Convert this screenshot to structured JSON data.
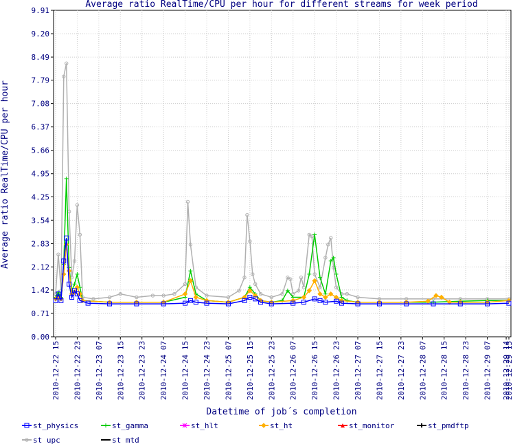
{
  "chart_data": {
    "type": "line",
    "title": "Average ratio RealTime/CPU per hour for different streams for week period",
    "xlabel": "Datetime of job´s completion",
    "ylabel": "Average ratio RealTime/CPU per hour",
    "ylim": [
      0,
      9.91
    ],
    "yticks": [
      "0.00",
      "0.71",
      "1.42",
      "2.12",
      "2.83",
      "3.54",
      "4.25",
      "4.95",
      "5.66",
      "6.37",
      "7.08",
      "7.79",
      "8.49",
      "9.20",
      "9.91"
    ],
    "xlim_hours": [
      0,
      168
    ],
    "xticks": [
      {
        "h": 0,
        "label": "2010-12-22 15"
      },
      {
        "h": 8,
        "label": "2010-12-22 23"
      },
      {
        "h": 16,
        "label": "2010-12-23 07"
      },
      {
        "h": 24,
        "label": "2010-12-23 15"
      },
      {
        "h": 32,
        "label": "2010-12-23 23"
      },
      {
        "h": 40,
        "label": "2010-12-24 07"
      },
      {
        "h": 48,
        "label": "2010-12-24 15"
      },
      {
        "h": 56,
        "label": "2010-12-24 23"
      },
      {
        "h": 64,
        "label": "2010-12-25 07"
      },
      {
        "h": 72,
        "label": "2010-12-25 15"
      },
      {
        "h": 80,
        "label": "2010-12-25 23"
      },
      {
        "h": 88,
        "label": "2010-12-26 07"
      },
      {
        "h": 96,
        "label": "2010-12-26 15"
      },
      {
        "h": 104,
        "label": "2010-12-26 23"
      },
      {
        "h": 112,
        "label": "2010-12-27 07"
      },
      {
        "h": 120,
        "label": "2010-12-27 15"
      },
      {
        "h": 128,
        "label": "2010-12-27 23"
      },
      {
        "h": 136,
        "label": "2010-12-28 07"
      },
      {
        "h": 144,
        "label": "2010-12-28 15"
      },
      {
        "h": 152,
        "label": "2010-12-28 23"
      },
      {
        "h": 160,
        "label": "2010-12-29 07"
      },
      {
        "h": 167,
        "label": "2010-12-29 14"
      },
      {
        "h": 168,
        "label": "2010-12-29 15"
      }
    ],
    "series": [
      {
        "name": "st_physics",
        "color": "#0000ff",
        "marker": "square",
        "points": [
          [
            0,
            1.1
          ],
          [
            1,
            1.3
          ],
          [
            2,
            1.1
          ],
          [
            3,
            2.3
          ],
          [
            4,
            3.0
          ],
          [
            5,
            1.6
          ],
          [
            6,
            1.2
          ],
          [
            7,
            1.4
          ],
          [
            8,
            1.3
          ],
          [
            9,
            1.1
          ],
          [
            12,
            1.02
          ],
          [
            20,
            1.0
          ],
          [
            30,
            1.0
          ],
          [
            40,
            1.0
          ],
          [
            48,
            1.02
          ],
          [
            50,
            1.1
          ],
          [
            52,
            1.05
          ],
          [
            56,
            1.02
          ],
          [
            64,
            1.0
          ],
          [
            70,
            1.1
          ],
          [
            72,
            1.2
          ],
          [
            74,
            1.15
          ],
          [
            76,
            1.05
          ],
          [
            80,
            1.0
          ],
          [
            88,
            1.02
          ],
          [
            92,
            1.05
          ],
          [
            96,
            1.15
          ],
          [
            98,
            1.1
          ],
          [
            100,
            1.05
          ],
          [
            104,
            1.08
          ],
          [
            106,
            1.02
          ],
          [
            112,
            1.0
          ],
          [
            120,
            1.0
          ],
          [
            130,
            1.0
          ],
          [
            140,
            1.0
          ],
          [
            150,
            1.0
          ],
          [
            160,
            1.0
          ],
          [
            168,
            1.02
          ]
        ]
      },
      {
        "name": "st_gamma",
        "color": "#00cc00",
        "marker": "plus",
        "points": [
          [
            0,
            1.2
          ],
          [
            1,
            1.35
          ],
          [
            2,
            1.2
          ],
          [
            3,
            2.2
          ],
          [
            4,
            4.8
          ],
          [
            5,
            2.1
          ],
          [
            6,
            1.4
          ],
          [
            7,
            1.6
          ],
          [
            8,
            1.9
          ],
          [
            9,
            1.5
          ],
          [
            10,
            1.1
          ],
          [
            20,
            1.05
          ],
          [
            30,
            1.05
          ],
          [
            40,
            1.05
          ],
          [
            48,
            1.2
          ],
          [
            50,
            2.0
          ],
          [
            52,
            1.3
          ],
          [
            56,
            1.1
          ],
          [
            64,
            1.05
          ],
          [
            70,
            1.2
          ],
          [
            72,
            1.5
          ],
          [
            74,
            1.3
          ],
          [
            76,
            1.1
          ],
          [
            80,
            1.05
          ],
          [
            84,
            1.1
          ],
          [
            86,
            1.4
          ],
          [
            88,
            1.2
          ],
          [
            92,
            1.2
          ],
          [
            94,
            1.9
          ],
          [
            96,
            3.1
          ],
          [
            98,
            1.8
          ],
          [
            100,
            1.3
          ],
          [
            102,
            2.3
          ],
          [
            103,
            2.4
          ],
          [
            104,
            1.9
          ],
          [
            106,
            1.2
          ],
          [
            108,
            1.1
          ],
          [
            112,
            1.05
          ],
          [
            120,
            1.05
          ],
          [
            130,
            1.05
          ],
          [
            140,
            1.05
          ],
          [
            150,
            1.08
          ],
          [
            160,
            1.1
          ],
          [
            168,
            1.1
          ]
        ]
      },
      {
        "name": "st_hlt",
        "color": "#ff00ff",
        "marker": "star",
        "points": []
      },
      {
        "name": "st_ht",
        "color": "#ffb000",
        "marker": "diamond",
        "points": [
          [
            0,
            1.15
          ],
          [
            1,
            1.2
          ],
          [
            2,
            1.15
          ],
          [
            3,
            1.9
          ],
          [
            4,
            2.8
          ],
          [
            5,
            2.0
          ],
          [
            6,
            1.3
          ],
          [
            7,
            1.35
          ],
          [
            8,
            1.5
          ],
          [
            9,
            1.3
          ],
          [
            10,
            1.1
          ],
          [
            20,
            1.05
          ],
          [
            30,
            1.05
          ],
          [
            40,
            1.05
          ],
          [
            48,
            1.3
          ],
          [
            50,
            1.7
          ],
          [
            52,
            1.2
          ],
          [
            56,
            1.1
          ],
          [
            64,
            1.05
          ],
          [
            70,
            1.2
          ],
          [
            72,
            1.4
          ],
          [
            74,
            1.25
          ],
          [
            76,
            1.1
          ],
          [
            80,
            1.05
          ],
          [
            88,
            1.1
          ],
          [
            92,
            1.2
          ],
          [
            94,
            1.4
          ],
          [
            96,
            1.7
          ],
          [
            98,
            1.3
          ],
          [
            100,
            1.2
          ],
          [
            102,
            1.3
          ],
          [
            104,
            1.2
          ],
          [
            106,
            1.1
          ],
          [
            112,
            1.05
          ],
          [
            120,
            1.05
          ],
          [
            130,
            1.05
          ],
          [
            138,
            1.08
          ],
          [
            141,
            1.25
          ],
          [
            143,
            1.2
          ],
          [
            146,
            1.05
          ],
          [
            150,
            1.05
          ],
          [
            160,
            1.05
          ],
          [
            168,
            1.1
          ]
        ]
      },
      {
        "name": "st_monitor",
        "color": "#ff0000",
        "marker": "triangle",
        "points": []
      },
      {
        "name": "st_pmdftp",
        "color": "#000000",
        "marker": "cross",
        "points": []
      },
      {
        "name": "st_upc",
        "color": "#b0b0b0",
        "marker": "circle",
        "points": [
          [
            0,
            1.3
          ],
          [
            1,
            2.5
          ],
          [
            2,
            1.4
          ],
          [
            3,
            7.9
          ],
          [
            4,
            8.3
          ],
          [
            5,
            3.8
          ],
          [
            6,
            1.8
          ],
          [
            7,
            2.3
          ],
          [
            8,
            4.0
          ],
          [
            9,
            3.1
          ],
          [
            10,
            1.2
          ],
          [
            14,
            1.15
          ],
          [
            20,
            1.2
          ],
          [
            24,
            1.3
          ],
          [
            30,
            1.2
          ],
          [
            36,
            1.25
          ],
          [
            40,
            1.25
          ],
          [
            44,
            1.3
          ],
          [
            48,
            1.6
          ],
          [
            49,
            4.1
          ],
          [
            50,
            2.8
          ],
          [
            52,
            1.5
          ],
          [
            56,
            1.25
          ],
          [
            64,
            1.2
          ],
          [
            68,
            1.4
          ],
          [
            70,
            1.8
          ],
          [
            71,
            3.7
          ],
          [
            72,
            2.9
          ],
          [
            73,
            1.9
          ],
          [
            74,
            1.6
          ],
          [
            76,
            1.3
          ],
          [
            80,
            1.2
          ],
          [
            84,
            1.3
          ],
          [
            86,
            1.8
          ],
          [
            87,
            1.75
          ],
          [
            88,
            1.3
          ],
          [
            90,
            1.4
          ],
          [
            91,
            1.8
          ],
          [
            92,
            1.5
          ],
          [
            94,
            3.1
          ],
          [
            95,
            3.05
          ],
          [
            96,
            1.9
          ],
          [
            98,
            1.5
          ],
          [
            100,
            2.4
          ],
          [
            101,
            2.8
          ],
          [
            102,
            3.0
          ],
          [
            103,
            2.1
          ],
          [
            104,
            1.5
          ],
          [
            106,
            1.3
          ],
          [
            108,
            1.3
          ],
          [
            112,
            1.2
          ],
          [
            120,
            1.15
          ],
          [
            130,
            1.15
          ],
          [
            140,
            1.15
          ],
          [
            150,
            1.15
          ],
          [
            160,
            1.15
          ],
          [
            168,
            1.15
          ]
        ]
      },
      {
        "name": "st_mtd",
        "color": "#000000",
        "marker": "none",
        "points": []
      }
    ]
  }
}
